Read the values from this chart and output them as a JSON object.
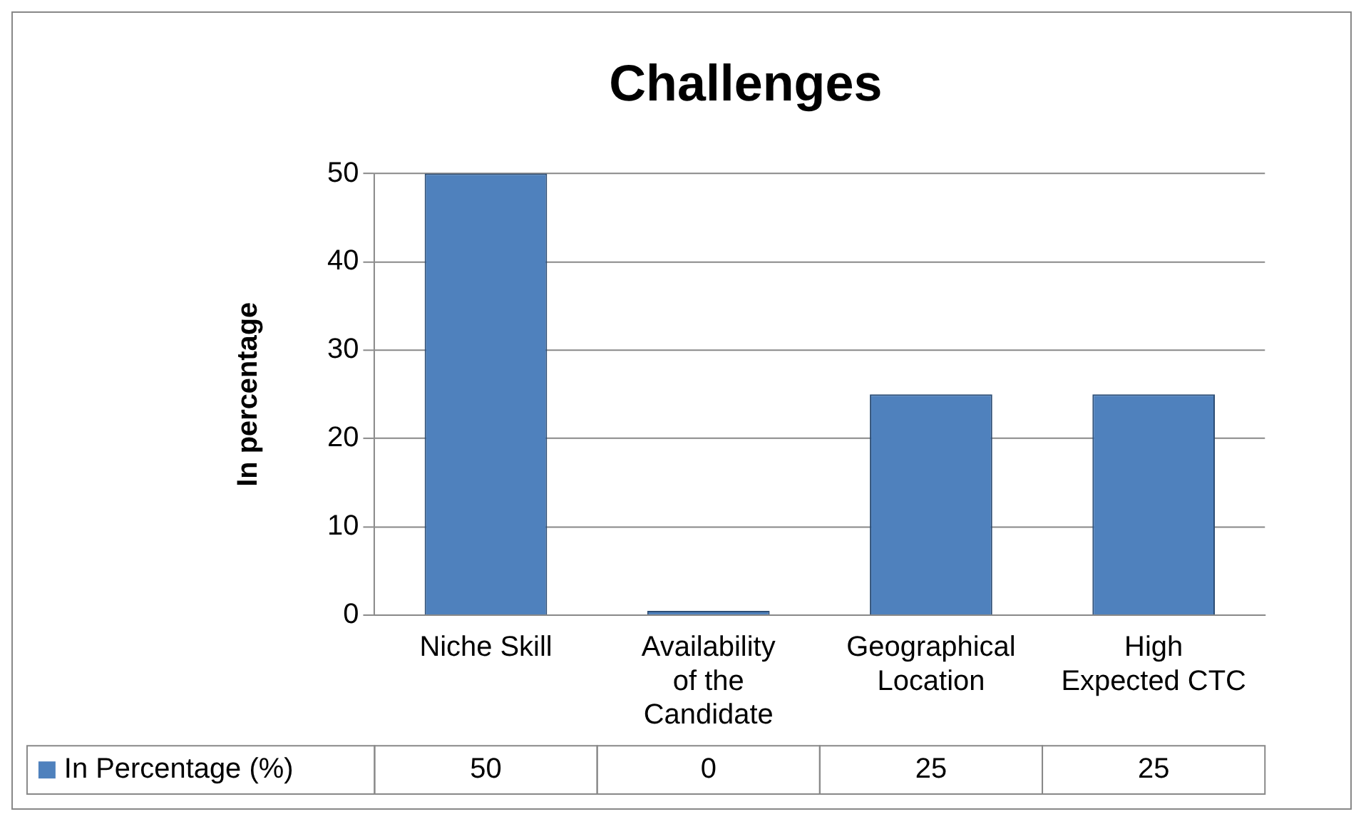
{
  "chart_data": {
    "type": "bar",
    "title": "Challenges",
    "ylabel": "In percentage",
    "categories": [
      "Niche Skill",
      "Availability of the Candidate",
      "Geographical Location",
      "High Expected CTC"
    ],
    "series": [
      {
        "name": "In Percentage (%)",
        "color": "#4f81bd",
        "values": [
          50,
          0,
          25,
          25
        ]
      }
    ],
    "ylim": [
      0,
      50
    ],
    "yticks": [
      0,
      10,
      20,
      30,
      40,
      50
    ],
    "grid": "y",
    "legend": "bottom",
    "data_labels": true
  }
}
